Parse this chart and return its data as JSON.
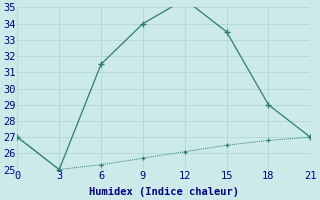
{
  "xlabel": "Humidex (Indice chaleur)",
  "x": [
    0,
    3,
    6,
    9,
    12,
    15,
    18,
    21
  ],
  "line1": [
    27,
    25,
    31.5,
    34,
    35.5,
    33.5,
    29,
    27
  ],
  "line2": [
    27,
    25,
    25.3,
    25.7,
    26.1,
    26.5,
    26.8,
    27
  ],
  "line_color": "#2d7d6f",
  "marker": "+",
  "xlim": [
    0,
    21
  ],
  "ylim": [
    25,
    35
  ],
  "yticks": [
    25,
    26,
    27,
    28,
    29,
    30,
    31,
    32,
    33,
    34,
    35
  ],
  "xticks": [
    0,
    3,
    6,
    9,
    12,
    15,
    18,
    21
  ],
  "bg_color": "#cdeaea",
  "grid_color": "#b0d8d8",
  "font_color": "#000080",
  "font_family": "monospace",
  "fontsize": 7.5
}
